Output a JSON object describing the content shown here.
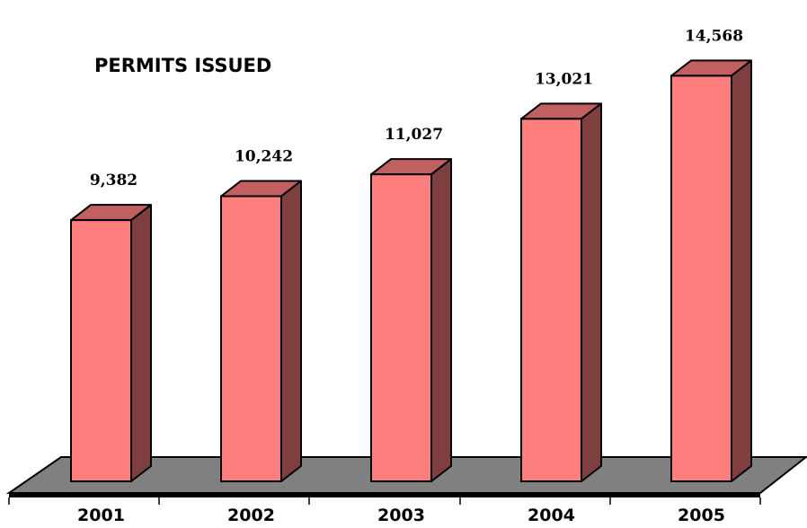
{
  "chart_data": {
    "type": "bar",
    "title": "PERMITS ISSUED",
    "categories": [
      "2001",
      "2002",
      "2003",
      "2004",
      "2005"
    ],
    "values": [
      9382,
      10242,
      11027,
      13021,
      14568
    ],
    "value_labels": [
      "9,382",
      "10,242",
      "11,027",
      "13,021",
      "14,568"
    ],
    "xlabel": "",
    "ylabel": "",
    "ylim": [
      0,
      16000
    ],
    "grid": false,
    "legend": "none",
    "style": "3d",
    "colors": {
      "bar_front": "#ff7f7f",
      "bar_top": "#c06060",
      "bar_side": "#7f3f3f",
      "floor": "#808080",
      "outline": "#000000"
    }
  }
}
